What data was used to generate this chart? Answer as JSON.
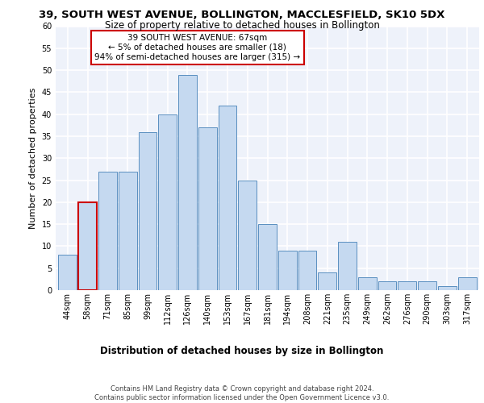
{
  "title": "39, SOUTH WEST AVENUE, BOLLINGTON, MACCLESFIELD, SK10 5DX",
  "subtitle": "Size of property relative to detached houses in Bollington",
  "xlabel": "Distribution of detached houses by size in Bollington",
  "ylabel": "Number of detached properties",
  "categories": [
    "44sqm",
    "58sqm",
    "71sqm",
    "85sqm",
    "99sqm",
    "112sqm",
    "126sqm",
    "140sqm",
    "153sqm",
    "167sqm",
    "181sqm",
    "194sqm",
    "208sqm",
    "221sqm",
    "235sqm",
    "249sqm",
    "262sqm",
    "276sqm",
    "290sqm",
    "303sqm",
    "317sqm"
  ],
  "values": [
    8,
    20,
    27,
    27,
    36,
    40,
    49,
    37,
    42,
    25,
    15,
    9,
    9,
    4,
    11,
    3,
    2,
    2,
    2,
    1,
    3
  ],
  "bar_color": "#c5d9f0",
  "bar_edge_color": "#5a8fc0",
  "highlight_bar_index": 1,
  "highlight_bar_edge_color": "#cc0000",
  "annotation_box_text": "39 SOUTH WEST AVENUE: 67sqm\n← 5% of detached houses are smaller (18)\n94% of semi-detached houses are larger (315) →",
  "annotation_box_color": "#cc0000",
  "ylim": [
    0,
    60
  ],
  "yticks": [
    0,
    5,
    10,
    15,
    20,
    25,
    30,
    35,
    40,
    45,
    50,
    55,
    60
  ],
  "footer_line1": "Contains HM Land Registry data © Crown copyright and database right 2024.",
  "footer_line2": "Contains public sector information licensed under the Open Government Licence v3.0.",
  "bg_color": "#eef2fa",
  "grid_color": "#ffffff",
  "title_fontsize": 9.5,
  "subtitle_fontsize": 8.5,
  "ylabel_fontsize": 8,
  "xlabel_fontsize": 8.5,
  "tick_fontsize": 7,
  "footer_fontsize": 6,
  "annotation_fontsize": 7.5
}
